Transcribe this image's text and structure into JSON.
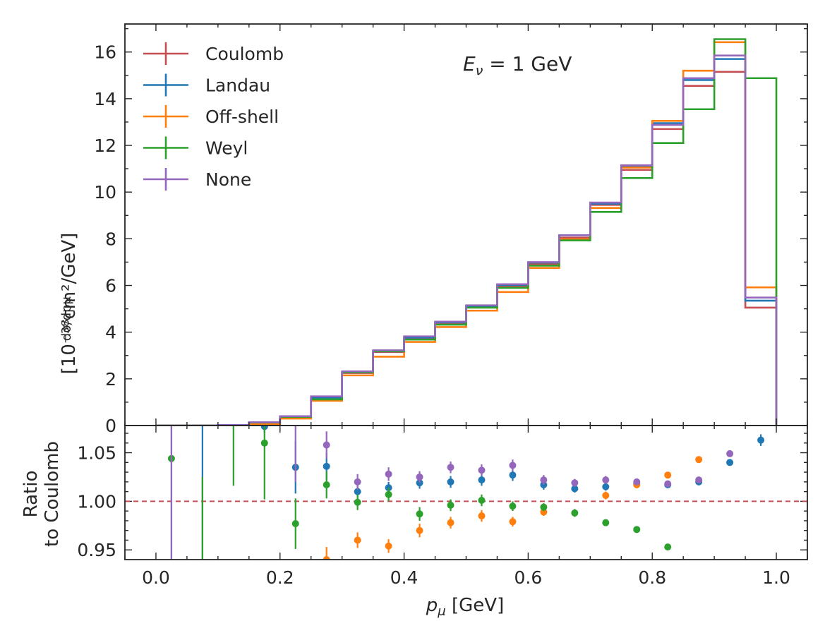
{
  "chart_data": [
    {
      "panel": "main",
      "type": "line",
      "step": "histogram",
      "annotation": "E_ν = 1 GeV",
      "ylabel_prefix": "dσ/dpμ",
      "ylabel": "[10⁻³⁸cm²/GeV]",
      "xlim": [
        -0.05,
        1.05
      ],
      "ylim": [
        0,
        17.2
      ],
      "yticks": [
        0,
        2,
        4,
        6,
        8,
        10,
        12,
        14,
        16
      ],
      "grid": false,
      "legend_position": "top-left",
      "bin_edges": [
        0.0,
        0.05,
        0.1,
        0.15,
        0.2,
        0.25,
        0.3,
        0.35,
        0.4,
        0.45,
        0.5,
        0.55,
        0.6,
        0.65,
        0.7,
        0.75,
        0.8,
        0.85,
        0.9,
        0.95,
        1.0
      ],
      "series": [
        {
          "name": "Coulomb",
          "color": "#c44e52",
          "values": [
            0.0,
            0.0,
            0.02,
            0.12,
            0.38,
            1.18,
            2.25,
            3.15,
            3.72,
            4.38,
            5.08,
            5.95,
            6.92,
            8.05,
            9.45,
            10.95,
            12.7,
            14.55,
            15.15,
            5.05
          ]
        },
        {
          "name": "Landau",
          "color": "#1f77b4",
          "values": [
            0.0,
            0.0,
            0.02,
            0.13,
            0.38,
            1.18,
            2.28,
            3.18,
            3.77,
            4.42,
            5.1,
            6.02,
            6.98,
            8.15,
            9.5,
            11.1,
            12.95,
            14.8,
            15.7,
            5.35
          ]
        },
        {
          "name": "Off-shell",
          "color": "#ff7f0e",
          "values": [
            0.0,
            0.0,
            0.01,
            0.07,
            0.3,
            1.06,
            2.15,
            2.95,
            3.58,
            4.22,
            4.92,
            5.72,
            6.75,
            7.98,
            9.32,
            11.05,
            13.05,
            15.2,
            16.42,
            5.92
          ]
        },
        {
          "name": "Weyl",
          "color": "#2ca02c",
          "values": [
            0.0,
            0.0,
            0.02,
            0.13,
            0.37,
            1.12,
            2.28,
            3.18,
            3.68,
            4.32,
            5.05,
            5.9,
            6.85,
            7.93,
            9.15,
            10.6,
            12.1,
            13.55,
            16.55,
            14.88
          ]
        },
        {
          "name": "None",
          "color": "#9467bd",
          "values": [
            0.0,
            0.0,
            0.02,
            0.14,
            0.4,
            1.25,
            2.32,
            3.22,
            3.82,
            4.45,
            5.15,
            6.05,
            7.0,
            8.15,
            9.55,
            11.15,
            12.88,
            14.88,
            15.85,
            5.48
          ]
        }
      ]
    },
    {
      "panel": "ratio",
      "type": "scatter",
      "xlabel": "p_μ [GeV]",
      "ylabel": "Ratio to Coulomb",
      "ylabel_lines": [
        "Ratio",
        "to Coulomb"
      ],
      "xlim": [
        -0.05,
        1.05
      ],
      "ylim": [
        0.94,
        1.078
      ],
      "xticks": [
        0.0,
        0.2,
        0.4,
        0.6,
        0.8,
        1.0
      ],
      "xtick_labels": [
        "0.0",
        "0.2",
        "0.4",
        "0.6",
        "0.8",
        "1.0"
      ],
      "yticks": [
        0.95,
        1.0,
        1.05
      ],
      "ytick_labels": [
        "0.95",
        "1.00",
        "1.05"
      ],
      "reference_line": {
        "y": 1.0,
        "color": "#c44e52",
        "style": "dashed"
      },
      "series": [
        {
          "name": "Landau",
          "color": "#1f77b4",
          "points": [
            {
              "x": 0.075,
              "y": null,
              "lo": 0.94,
              "hi": 1.078
            },
            {
              "x": 0.175,
              "y": 1.077,
              "lo": 1.07,
              "hi": 1.078
            },
            {
              "x": 0.225,
              "y": 1.035,
              "lo": 1.008,
              "hi": 1.062
            },
            {
              "x": 0.275,
              "y": 1.036,
              "lo": 1.022,
              "hi": 1.05
            },
            {
              "x": 0.325,
              "y": 1.01,
              "lo": 1.002,
              "hi": 1.018
            },
            {
              "x": 0.375,
              "y": 1.014,
              "lo": 1.008,
              "hi": 1.02
            },
            {
              "x": 0.425,
              "y": 1.019,
              "lo": 1.013,
              "hi": 1.025
            },
            {
              "x": 0.475,
              "y": 1.02,
              "lo": 1.014,
              "hi": 1.026
            },
            {
              "x": 0.525,
              "y": 1.022,
              "lo": 1.016,
              "hi": 1.028
            },
            {
              "x": 0.575,
              "y": 1.027,
              "lo": 1.021,
              "hi": 1.033
            },
            {
              "x": 0.625,
              "y": 1.017,
              "lo": 1.012,
              "hi": 1.022
            },
            {
              "x": 0.675,
              "y": 1.013,
              "lo": 1.009,
              "hi": 1.017
            },
            {
              "x": 0.725,
              "y": 1.015,
              "lo": 1.011,
              "hi": 1.019
            },
            {
              "x": 0.775,
              "y": 1.018,
              "lo": 1.015,
              "hi": 1.021
            },
            {
              "x": 0.825,
              "y": 1.017,
              "lo": 1.014,
              "hi": 1.02
            },
            {
              "x": 0.875,
              "y": 1.02,
              "lo": 1.017,
              "hi": 1.023
            },
            {
              "x": 0.925,
              "y": 1.04,
              "lo": 1.037,
              "hi": 1.043
            },
            {
              "x": 0.975,
              "y": 1.063,
              "lo": 1.057,
              "hi": 1.069
            }
          ]
        },
        {
          "name": "Off-shell",
          "color": "#ff7f0e",
          "points": [
            {
              "x": 0.275,
              "y": 0.94,
              "lo": 0.94,
              "hi": 0.953
            },
            {
              "x": 0.325,
              "y": 0.96,
              "lo": 0.952,
              "hi": 0.968
            },
            {
              "x": 0.375,
              "y": 0.954,
              "lo": 0.947,
              "hi": 0.961
            },
            {
              "x": 0.425,
              "y": 0.97,
              "lo": 0.963,
              "hi": 0.977
            },
            {
              "x": 0.475,
              "y": 0.978,
              "lo": 0.972,
              "hi": 0.984
            },
            {
              "x": 0.525,
              "y": 0.985,
              "lo": 0.979,
              "hi": 0.991
            },
            {
              "x": 0.575,
              "y": 0.979,
              "lo": 0.974,
              "hi": 0.984
            },
            {
              "x": 0.625,
              "y": 0.989,
              "lo": 0.985,
              "hi": 0.993
            },
            {
              "x": 0.675,
              "y": null,
              "lo": null,
              "hi": null
            },
            {
              "x": 0.725,
              "y": 1.006,
              "lo": 1.002,
              "hi": 1.01
            },
            {
              "x": 0.775,
              "y": 1.017,
              "lo": 1.014,
              "hi": 1.02
            },
            {
              "x": 0.825,
              "y": 1.027,
              "lo": 1.024,
              "hi": 1.03
            },
            {
              "x": 0.875,
              "y": 1.043,
              "lo": 1.04,
              "hi": 1.046
            }
          ]
        },
        {
          "name": "Weyl",
          "color": "#2ca02c",
          "points": [
            {
              "x": 0.025,
              "y": 1.044,
              "lo": 0.94,
              "hi": 1.078
            },
            {
              "x": 0.075,
              "y": null,
              "lo": 0.94,
              "hi": 1.025
            },
            {
              "x": 0.125,
              "y": null,
              "lo": 1.016,
              "hi": 1.078
            },
            {
              "x": 0.175,
              "y": 1.06,
              "lo": 1.002,
              "hi": 1.078
            },
            {
              "x": 0.225,
              "y": 0.977,
              "lo": 0.951,
              "hi": 1.003
            },
            {
              "x": 0.275,
              "y": 1.017,
              "lo": 1.003,
              "hi": 1.031
            },
            {
              "x": 0.325,
              "y": 0.999,
              "lo": 0.991,
              "hi": 1.007
            },
            {
              "x": 0.375,
              "y": 1.007,
              "lo": 1.0,
              "hi": 1.014
            },
            {
              "x": 0.425,
              "y": 0.987,
              "lo": 0.98,
              "hi": 0.994
            },
            {
              "x": 0.475,
              "y": 0.996,
              "lo": 0.99,
              "hi": 1.002
            },
            {
              "x": 0.525,
              "y": 1.001,
              "lo": 0.995,
              "hi": 1.007
            },
            {
              "x": 0.575,
              "y": 0.995,
              "lo": 0.99,
              "hi": 1.0
            },
            {
              "x": 0.625,
              "y": 0.994,
              "lo": 0.99,
              "hi": 0.998
            },
            {
              "x": 0.675,
              "y": 0.988,
              "lo": 0.984,
              "hi": 0.992
            },
            {
              "x": 0.725,
              "y": 0.978,
              "lo": 0.975,
              "hi": 0.981
            },
            {
              "x": 0.775,
              "y": 0.971,
              "lo": 0.968,
              "hi": 0.974
            },
            {
              "x": 0.825,
              "y": 0.953,
              "lo": 0.951,
              "hi": 0.955
            }
          ]
        },
        {
          "name": "None",
          "color": "#9467bd",
          "points": [
            {
              "x": 0.025,
              "y": null,
              "lo": 0.94,
              "hi": 1.078
            },
            {
              "x": 0.225,
              "y": null,
              "lo": 1.02,
              "hi": 1.078
            },
            {
              "x": 0.275,
              "y": 1.058,
              "lo": 1.044,
              "hi": 1.072
            },
            {
              "x": 0.325,
              "y": 1.02,
              "lo": 1.012,
              "hi": 1.028
            },
            {
              "x": 0.375,
              "y": 1.028,
              "lo": 1.021,
              "hi": 1.035
            },
            {
              "x": 0.425,
              "y": 1.025,
              "lo": 1.019,
              "hi": 1.031
            },
            {
              "x": 0.475,
              "y": 1.035,
              "lo": 1.029,
              "hi": 1.041
            },
            {
              "x": 0.525,
              "y": 1.032,
              "lo": 1.026,
              "hi": 1.038
            },
            {
              "x": 0.575,
              "y": 1.037,
              "lo": 1.031,
              "hi": 1.043
            },
            {
              "x": 0.625,
              "y": 1.022,
              "lo": 1.017,
              "hi": 1.027
            },
            {
              "x": 0.675,
              "y": 1.019,
              "lo": 1.015,
              "hi": 1.023
            },
            {
              "x": 0.725,
              "y": 1.022,
              "lo": 1.018,
              "hi": 1.026
            },
            {
              "x": 0.775,
              "y": 1.02,
              "lo": 1.017,
              "hi": 1.023
            },
            {
              "x": 0.825,
              "y": 1.018,
              "lo": 1.015,
              "hi": 1.021
            },
            {
              "x": 0.875,
              "y": 1.022,
              "lo": 1.019,
              "hi": 1.025
            },
            {
              "x": 0.925,
              "y": 1.049,
              "lo": 1.046,
              "hi": 1.052
            }
          ]
        }
      ]
    }
  ]
}
